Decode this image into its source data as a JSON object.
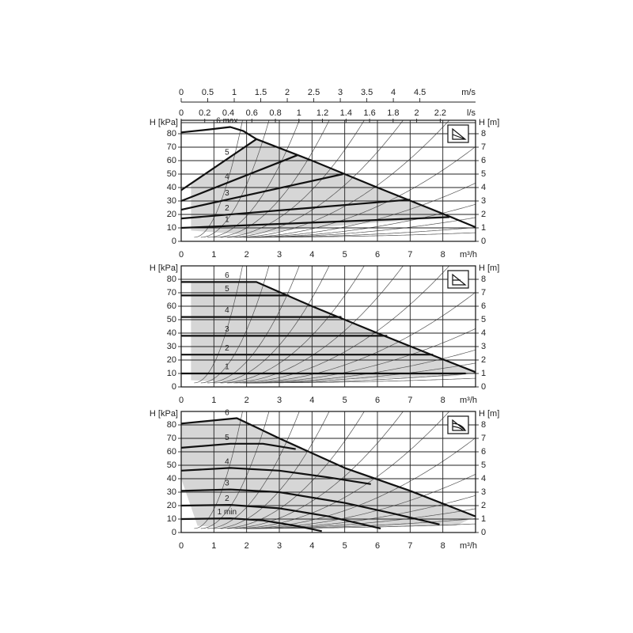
{
  "chart_data": [
    {
      "type": "line",
      "ylabel": "H [kPa]",
      "y2label": "H [m]",
      "xlabel": "m³/h",
      "x2axes": [
        {
          "label": "m/s",
          "xlim": [
            0,
            5.55
          ],
          "xticks": [
            0,
            0.5,
            1,
            1.5,
            2,
            2.5,
            3,
            3.5,
            4,
            4.5
          ]
        },
        {
          "label": "l/s",
          "xlim": [
            0,
            2.5
          ],
          "xticks": [
            0,
            0.2,
            0.4,
            0.6,
            0.8,
            1,
            1.2,
            1.4,
            1.6,
            1.8,
            2,
            2.2
          ]
        }
      ],
      "xlim": [
        0,
        9
      ],
      "xticks": [
        0,
        1,
        2,
        3,
        4,
        5,
        6,
        7,
        8
      ],
      "ylim": [
        0,
        90
      ],
      "yticks": [
        0,
        10,
        20,
        30,
        40,
        50,
        60,
        70,
        80
      ],
      "y2lim": [
        0,
        9
      ],
      "y2ticks": [
        0,
        1,
        2,
        3,
        4,
        5,
        6,
        7,
        8
      ],
      "grid": true,
      "area": {
        "color": "#d6d6d6",
        "x": [
          0.3,
          2.3,
          4,
          6,
          8,
          8.4,
          6,
          4,
          2,
          0.3
        ],
        "y": [
          43,
          76,
          60,
          40,
          20.5,
          18,
          14,
          10,
          5,
          8
        ]
      },
      "series": [
        {
          "name": "6 max",
          "color": "#111",
          "x": [
            0,
            0.8,
            1.5,
            1.9,
            2.3,
            4,
            6,
            8,
            9
          ],
          "values": [
            81,
            83,
            85,
            82,
            76,
            60,
            40,
            20.5,
            10.5
          ]
        },
        {
          "name": "5",
          "color": "#111",
          "x": [
            0,
            2.3
          ],
          "values": [
            38,
            76
          ]
        },
        {
          "name": "4",
          "color": "#111",
          "x": [
            0,
            3.55
          ],
          "values": [
            30,
            64
          ]
        },
        {
          "name": "3",
          "color": "#111",
          "x": [
            0,
            4.95
          ],
          "values": [
            23.5,
            50
          ]
        },
        {
          "name": "2",
          "color": "#111",
          "x": [
            0,
            7
          ],
          "values": [
            17,
            31
          ]
        },
        {
          "name": "1",
          "color": "#111",
          "x": [
            0,
            8.2
          ],
          "values": [
            10,
            18
          ]
        }
      ]
    },
    {
      "type": "line",
      "ylabel": "H [kPa]",
      "y2label": "H [m]",
      "xlabel": "m³/h",
      "xlim": [
        0,
        9
      ],
      "xticks": [
        0,
        1,
        2,
        3,
        4,
        5,
        6,
        7,
        8
      ],
      "ylim": [
        0,
        90
      ],
      "yticks": [
        0,
        10,
        20,
        30,
        40,
        50,
        60,
        70,
        80
      ],
      "y2lim": [
        0,
        9
      ],
      "y2ticks": [
        0,
        1,
        2,
        3,
        4,
        5,
        6,
        7,
        8
      ],
      "grid": true,
      "area": {
        "color": "#d6d6d6",
        "x": [
          0.3,
          2.3,
          4,
          6,
          8,
          9,
          8.4,
          2,
          0.3
        ],
        "y": [
          78,
          78,
          60,
          40,
          20.5,
          11,
          8,
          3,
          5
        ]
      },
      "series": [
        {
          "name": "6",
          "color": "#111",
          "x": [
            0,
            2.3,
            4,
            6,
            8,
            9
          ],
          "values": [
            78,
            78,
            60,
            40,
            20.5,
            11
          ]
        },
        {
          "name": "5",
          "color": "#111",
          "x": [
            0,
            3.3
          ],
          "values": [
            68,
            68
          ]
        },
        {
          "name": "4",
          "color": "#111",
          "x": [
            0,
            4.9
          ],
          "values": [
            52,
            52
          ]
        },
        {
          "name": "3",
          "color": "#111",
          "x": [
            0,
            6.3
          ],
          "values": [
            38,
            38
          ]
        },
        {
          "name": "2",
          "color": "#111",
          "x": [
            0,
            7.7
          ],
          "values": [
            24,
            24
          ]
        },
        {
          "name": "1",
          "color": "#111",
          "x": [
            0,
            8.7
          ],
          "values": [
            10,
            10
          ]
        }
      ]
    },
    {
      "type": "line",
      "ylabel": "H [kPa]",
      "y2label": "H [m]",
      "xlabel": "m³/h",
      "xlim": [
        0,
        9
      ],
      "xticks": [
        0,
        1,
        2,
        3,
        4,
        5,
        6,
        7,
        8
      ],
      "ylim": [
        0,
        90
      ],
      "yticks": [
        0,
        10,
        20,
        30,
        40,
        50,
        60,
        70,
        80
      ],
      "y2lim": [
        0,
        9
      ],
      "y2ticks": [
        0,
        1,
        2,
        3,
        4,
        5,
        6,
        7,
        8
      ],
      "grid": true,
      "area": {
        "color": "#d6d6d6",
        "x": [
          0,
          1.7,
          2.4,
          3,
          5,
          7,
          9,
          8.4,
          2,
          0.5,
          0
        ],
        "y": [
          81,
          85,
          77,
          70,
          48,
          31,
          12,
          5,
          3,
          5,
          40
        ]
      },
      "series": [
        {
          "name": "6",
          "color": "#111",
          "x": [
            0,
            1.7,
            2.4,
            3,
            5,
            7,
            9
          ],
          "values": [
            81,
            85,
            77,
            70,
            48,
            31,
            12
          ]
        },
        {
          "name": "5",
          "color": "#111",
          "x": [
            0,
            1.5,
            2.5,
            3.5
          ],
          "values": [
            63,
            66,
            66,
            62
          ]
        },
        {
          "name": "4",
          "color": "#111",
          "x": [
            0,
            1.5,
            3,
            4.5,
            5.8
          ],
          "values": [
            46,
            48,
            46,
            41,
            36
          ]
        },
        {
          "name": "3",
          "color": "#111",
          "x": [
            0,
            1.5,
            3,
            5,
            6.5,
            7.9
          ],
          "values": [
            31,
            32,
            30,
            22,
            14,
            6
          ]
        },
        {
          "name": "2",
          "color": "#111",
          "x": [
            0,
            1.5,
            3,
            4.5,
            6.1
          ],
          "values": [
            20,
            20.5,
            18,
            12,
            3
          ]
        },
        {
          "name": "1 min",
          "color": "#111",
          "x": [
            0,
            1.5,
            2.5,
            3.5,
            4.3
          ],
          "values": [
            10,
            10.5,
            9,
            5,
            1
          ]
        }
      ]
    }
  ]
}
